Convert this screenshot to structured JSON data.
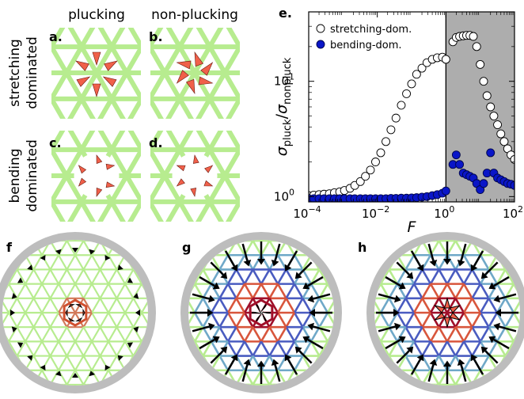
{
  "column_headers": [
    "plucking",
    "non-plucking"
  ],
  "row_labels": [
    [
      "stretching",
      "dominated"
    ],
    [
      "bending",
      "dominated"
    ]
  ],
  "panel_labels": {
    "a": "a.",
    "b": "b.",
    "c": "c.",
    "d": "d.",
    "e": "e.",
    "f": "f",
    "g": "g",
    "h": "h"
  },
  "colors": {
    "lattice_green": "#b7ec8f",
    "wedge_red": "#f0604a",
    "shade_gray": "#adadad",
    "ring_gray": "#bdbdbd",
    "marker_blue": "#0a16c8",
    "bond_blue": "#4a5cc0",
    "bond_red": "#d8563c",
    "bond_dark_red": "#a0102a"
  },
  "chart_data": {
    "type": "scatter",
    "xlabel": "F",
    "ylabel": "σpluck/σnonpluck",
    "x_scale": "log",
    "y_scale": "log",
    "xlim": [
      0.0001,
      100
    ],
    "ylim": [
      0.9,
      40
    ],
    "x_ticks": [
      {
        "value": 0.0001,
        "base": "10",
        "exp": "−4"
      },
      {
        "value": 0.01,
        "base": "10",
        "exp": "−2"
      },
      {
        "value": 1,
        "base": "10",
        "exp": "0"
      },
      {
        "value": 100,
        "base": "10",
        "exp": "2"
      }
    ],
    "y_ticks": [
      {
        "value": 1,
        "base": "10",
        "exp": "0"
      },
      {
        "value": 10,
        "base": "10",
        "exp": "1"
      }
    ],
    "shaded_region": {
      "from": 1,
      "to": 100
    },
    "legend_position": "top-left",
    "series": [
      {
        "name": "stretching-dom.",
        "marker": "open-circle",
        "points": [
          [
            0.0001,
            1.02
          ],
          [
            0.00014,
            1.03
          ],
          [
            0.0002,
            1.04
          ],
          [
            0.00028,
            1.05
          ],
          [
            0.0004,
            1.06
          ],
          [
            0.00056,
            1.08
          ],
          [
            0.0008,
            1.1
          ],
          [
            0.0011,
            1.13
          ],
          [
            0.0016,
            1.18
          ],
          [
            0.0022,
            1.25
          ],
          [
            0.0032,
            1.35
          ],
          [
            0.0045,
            1.5
          ],
          [
            0.0063,
            1.7
          ],
          [
            0.0089,
            2.0
          ],
          [
            0.0126,
            2.4
          ],
          [
            0.0178,
            3.0
          ],
          [
            0.025,
            3.8
          ],
          [
            0.035,
            4.8
          ],
          [
            0.05,
            6.2
          ],
          [
            0.071,
            7.8
          ],
          [
            0.1,
            9.5
          ],
          [
            0.14,
            11.5
          ],
          [
            0.2,
            13.0
          ],
          [
            0.28,
            14.5
          ],
          [
            0.4,
            15.5
          ],
          [
            0.56,
            16.0
          ],
          [
            0.79,
            16.2
          ],
          [
            1.0,
            15.5
          ],
          [
            1.6,
            22.0
          ],
          [
            2.0,
            24.0
          ],
          [
            2.5,
            24.5
          ],
          [
            3.2,
            24.8
          ],
          [
            4.0,
            25.0
          ],
          [
            5.0,
            25.0
          ],
          [
            6.3,
            24.5
          ],
          [
            7.9,
            20.0
          ],
          [
            10,
            14.0
          ],
          [
            12.6,
            10.0
          ],
          [
            15.8,
            7.5
          ],
          [
            20,
            6.0
          ],
          [
            25,
            5.0
          ],
          [
            32,
            4.2
          ],
          [
            40,
            3.5
          ],
          [
            50,
            3.0
          ],
          [
            63,
            2.6
          ],
          [
            79,
            2.3
          ],
          [
            100,
            2.1
          ]
        ]
      },
      {
        "name": "bending-dom.",
        "marker": "filled-circle",
        "points": [
          [
            0.0001,
            0.96
          ],
          [
            0.00014,
            0.96
          ],
          [
            0.0002,
            0.96
          ],
          [
            0.00028,
            0.96
          ],
          [
            0.0004,
            0.96
          ],
          [
            0.00056,
            0.96
          ],
          [
            0.0008,
            0.96
          ],
          [
            0.0011,
            0.96
          ],
          [
            0.0016,
            0.96
          ],
          [
            0.0022,
            0.96
          ],
          [
            0.0032,
            0.96
          ],
          [
            0.0045,
            0.96
          ],
          [
            0.0063,
            0.96
          ],
          [
            0.0089,
            0.96
          ],
          [
            0.0126,
            0.96
          ],
          [
            0.0178,
            0.96
          ],
          [
            0.025,
            0.965
          ],
          [
            0.035,
            0.965
          ],
          [
            0.05,
            0.97
          ],
          [
            0.071,
            0.97
          ],
          [
            0.1,
            0.975
          ],
          [
            0.14,
            0.98
          ],
          [
            0.2,
            0.99
          ],
          [
            0.28,
            1.0
          ],
          [
            0.4,
            1.02
          ],
          [
            0.56,
            1.04
          ],
          [
            0.79,
            1.07
          ],
          [
            1.0,
            1.12
          ],
          [
            1.6,
            1.9
          ],
          [
            2.0,
            2.3
          ],
          [
            2.5,
            1.9
          ],
          [
            3.2,
            1.6
          ],
          [
            4.0,
            1.55
          ],
          [
            5.0,
            1.5
          ],
          [
            6.3,
            1.45
          ],
          [
            7.9,
            1.3
          ],
          [
            10,
            1.15
          ],
          [
            12.6,
            1.3
          ],
          [
            15.8,
            1.6
          ],
          [
            20,
            2.4
          ],
          [
            25,
            1.6
          ],
          [
            32,
            1.45
          ],
          [
            40,
            1.4
          ],
          [
            50,
            1.35
          ],
          [
            63,
            1.3
          ],
          [
            79,
            1.28
          ],
          [
            100,
            1.25
          ]
        ]
      }
    ]
  }
}
